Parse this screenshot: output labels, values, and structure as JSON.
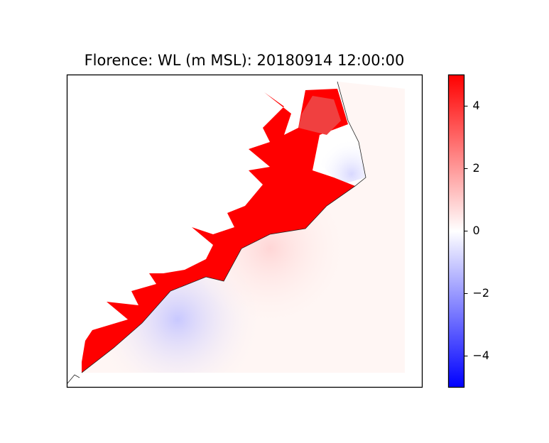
{
  "chart_data": {
    "type": "map",
    "title": "Florence: WL (m MSL): 20180914 12:00:00",
    "colormap": [
      "#0000ff",
      "#ffffff",
      "#ff0000"
    ],
    "clim": [
      -5,
      5
    ],
    "cticks": [
      {
        "value": -4,
        "label": "−4"
      },
      {
        "value": -2,
        "label": "−2"
      },
      0,
      2,
      4
    ]
  }
}
